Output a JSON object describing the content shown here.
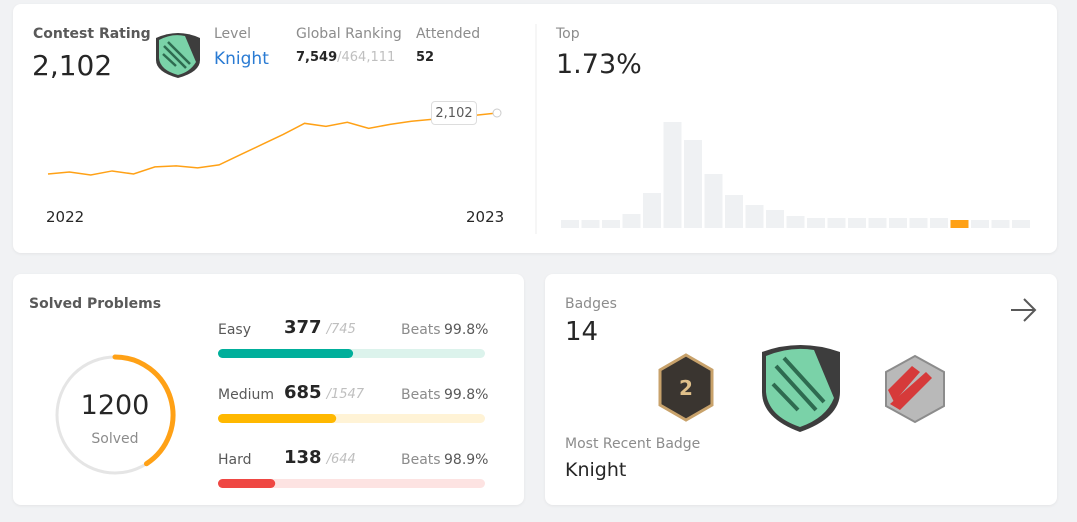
{
  "contest": {
    "title": "Contest Rating",
    "rating": "2,102",
    "level_label": "Level",
    "level": "Knight",
    "ranking_label": "Global Ranking",
    "ranking": "7,549",
    "ranking_total": "/464,111",
    "attended_label": "Attended",
    "attended": "52",
    "chart": {
      "type": "line",
      "color": "#ffa116",
      "values": [
        1500,
        1520,
        1490,
        1530,
        1500,
        1570,
        1580,
        1560,
        1590,
        1690,
        1790,
        1890,
        2000,
        1970,
        2010,
        1950,
        1990,
        2020,
        2040,
        2060,
        2080,
        2102
      ],
      "x_labels": [
        "2022",
        "2023"
      ],
      "tooltip": "2,102"
    }
  },
  "top": {
    "label": "Top",
    "value": "1.73%",
    "chart": {
      "type": "bar",
      "color": "#eff1f3",
      "highlight_color": "#ffa116",
      "highlight": 19,
      "values": [
        8,
        8,
        8,
        14,
        35,
        106,
        88,
        54,
        33,
        23,
        18,
        12,
        10,
        10,
        10,
        10,
        10,
        10,
        10,
        8,
        8,
        8,
        8
      ]
    }
  },
  "solved": {
    "title": "Solved Problems",
    "count": 1200,
    "count_label": "Solved",
    "ring_color": "#ffa116",
    "rows": [
      {
        "name": "Easy",
        "solved": 377,
        "total": {
          "value": 745,
          "label": "/745"
        },
        "beats_label": "Beats",
        "beats": "99.8%",
        "color": "#00af9b",
        "track": "#dcf3ec"
      },
      {
        "name": "Medium",
        "solved": 685,
        "total": {
          "value": 1547,
          "label": "/1547"
        },
        "beats_label": "Beats",
        "beats": "99.8%",
        "color": "#ffb800",
        "track": "#fff3d6"
      },
      {
        "name": "Hard",
        "solved": 138,
        "total": {
          "value": 644,
          "label": "/644"
        },
        "beats_label": "Beats",
        "beats": "98.9%",
        "color": "#ef4743",
        "track": "#fde3e2"
      }
    ]
  },
  "badges": {
    "title": "Badges",
    "count": "14",
    "recent_label": "Most Recent Badge",
    "recent": "Knight"
  }
}
